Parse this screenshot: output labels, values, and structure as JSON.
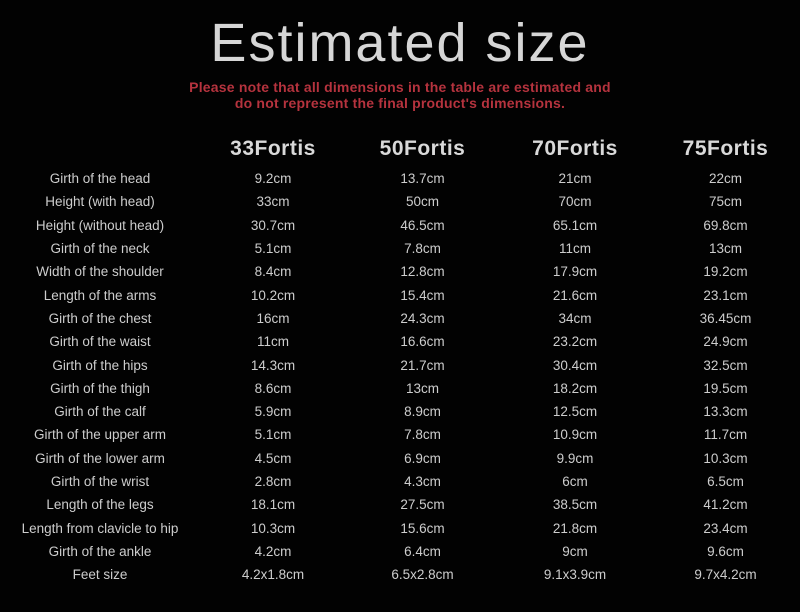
{
  "title": "Estimated size",
  "subtitle": {
    "line1": "Please note that all dimensions in the table are estimated and",
    "line2": "do not represent the final product's dimensions."
  },
  "colors": {
    "background": "#000000",
    "title_text": "#d6d6d6",
    "subtitle_text": "#b5333e",
    "table_text": "#cdcdcd",
    "header_text": "#d9d9d9"
  },
  "chart_data": {
    "type": "table",
    "title": "Estimated size",
    "columns": [
      "",
      "33Fortis",
      "50Fortis",
      "70Fortis",
      "75Fortis"
    ],
    "rows": [
      [
        "Girth of the head",
        "9.2cm",
        "13.7cm",
        "21cm",
        "22cm"
      ],
      [
        "Height (with head)",
        "33cm",
        "50cm",
        "70cm",
        "75cm"
      ],
      [
        "Height (without head)",
        "30.7cm",
        "46.5cm",
        "65.1cm",
        "69.8cm"
      ],
      [
        "Girth of the neck",
        "5.1cm",
        "7.8cm",
        "11cm",
        "13cm"
      ],
      [
        "Width of the shoulder",
        "8.4cm",
        "12.8cm",
        "17.9cm",
        "19.2cm"
      ],
      [
        "Length of the arms",
        "10.2cm",
        "15.4cm",
        "21.6cm",
        "23.1cm"
      ],
      [
        "Girth of the chest",
        "16cm",
        "24.3cm",
        "34cm",
        "36.45cm"
      ],
      [
        "Girth of the waist",
        "11cm",
        "16.6cm",
        "23.2cm",
        "24.9cm"
      ],
      [
        "Girth of the hips",
        "14.3cm",
        "21.7cm",
        "30.4cm",
        "32.5cm"
      ],
      [
        "Girth of the thigh",
        "8.6cm",
        "13cm",
        "18.2cm",
        "19.5cm"
      ],
      [
        "Girth of the calf",
        "5.9cm",
        "8.9cm",
        "12.5cm",
        "13.3cm"
      ],
      [
        "Girth of the upper arm",
        "5.1cm",
        "7.8cm",
        "10.9cm",
        "11.7cm"
      ],
      [
        "Girth of the lower arm",
        "4.5cm",
        "6.9cm",
        "9.9cm",
        "10.3cm"
      ],
      [
        "Girth of the wrist",
        "2.8cm",
        "4.3cm",
        "6cm",
        "6.5cm"
      ],
      [
        "Length of the legs",
        "18.1cm",
        "27.5cm",
        "38.5cm",
        "41.2cm"
      ],
      [
        "Length from clavicle to hip",
        "10.3cm",
        "15.6cm",
        "21.8cm",
        "23.4cm"
      ],
      [
        "Girth of the ankle",
        "4.2cm",
        "6.4cm",
        "9cm",
        "9.6cm"
      ],
      [
        "Feet size",
        "4.2x1.8cm",
        "6.5x2.8cm",
        "9.1x3.9cm",
        "9.7x4.2cm"
      ]
    ]
  }
}
